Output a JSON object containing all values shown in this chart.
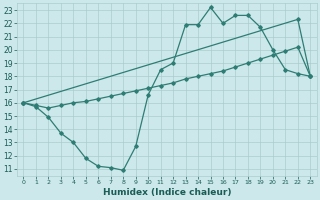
{
  "xlabel": "Humidex (Indice chaleur)",
  "xlim": [
    -0.5,
    23.5
  ],
  "ylim": [
    10.5,
    23.5
  ],
  "xticks": [
    0,
    1,
    2,
    3,
    4,
    5,
    6,
    7,
    8,
    9,
    10,
    11,
    12,
    13,
    14,
    15,
    16,
    17,
    18,
    19,
    20,
    21,
    22,
    23
  ],
  "yticks": [
    11,
    12,
    13,
    14,
    15,
    16,
    17,
    18,
    19,
    20,
    21,
    22,
    23
  ],
  "bg_color": "#cce8ea",
  "grid_color": "#aaccce",
  "line_color": "#2e7d74",
  "line1_x": [
    0,
    1,
    2,
    3,
    4,
    5,
    6,
    7,
    8,
    9,
    10,
    11,
    12,
    13,
    14,
    15,
    16,
    17,
    18,
    19,
    20,
    21,
    22,
    23
  ],
  "line1_y": [
    16,
    15.7,
    14.9,
    13.7,
    13.0,
    11.8,
    11.2,
    11.1,
    10.9,
    12.7,
    16.6,
    18.5,
    19.0,
    21.9,
    21.9,
    23.2,
    22.0,
    22.6,
    22.6,
    21.7,
    20.0,
    18.5,
    18.2,
    18.0
  ],
  "line2_x": [
    0,
    22,
    23
  ],
  "line2_y": [
    16.0,
    22.3,
    18.0
  ],
  "line3_x": [
    0,
    1,
    2,
    3,
    4,
    5,
    6,
    7,
    8,
    9,
    10,
    11,
    12,
    13,
    14,
    15,
    16,
    17,
    18,
    19,
    20,
    21,
    22,
    23
  ],
  "line3_y": [
    16.0,
    15.8,
    15.6,
    15.8,
    16.0,
    16.1,
    16.3,
    16.5,
    16.7,
    16.9,
    17.1,
    17.3,
    17.5,
    17.8,
    18.0,
    18.2,
    18.4,
    18.7,
    19.0,
    19.3,
    19.6,
    19.9,
    20.2,
    18.0
  ]
}
